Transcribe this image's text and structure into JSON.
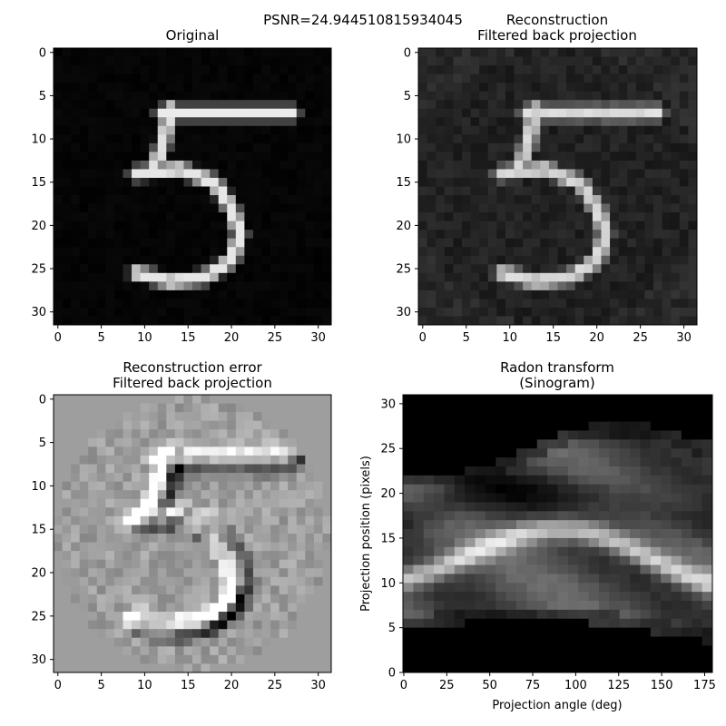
{
  "suptitle": "PSNR=24.944510815934045",
  "chart_data": [
    {
      "type": "heatmap",
      "title": "Original",
      "colormap": "gray",
      "xlim": [
        -0.5,
        31.5
      ],
      "ylim": [
        31.5,
        -0.5
      ],
      "xticks": [
        "0",
        "5",
        "10",
        "15",
        "20",
        "25",
        "30"
      ],
      "yticks": [
        "0",
        "5",
        "10",
        "15",
        "20",
        "25",
        "30"
      ],
      "xlabel": "",
      "ylabel": "",
      "background_level": 0.02,
      "strokes": [
        {
          "label": "top bar",
          "points": [
            [
              12,
              7
            ],
            [
              27,
              7
            ]
          ],
          "level": 0.92
        },
        {
          "label": "left stem",
          "points": [
            [
              13,
              6.5
            ],
            [
              12,
              11
            ],
            [
              11,
              13.5
            ]
          ],
          "level": 0.88
        },
        {
          "label": "bowl",
          "points": [
            [
              9,
              14
            ],
            [
              14,
              13.5
            ],
            [
              18,
              15
            ],
            [
              20,
              18
            ],
            [
              21,
              21
            ],
            [
              20,
              24
            ],
            [
              17,
              26
            ],
            [
              13,
              26.5
            ],
            [
              9,
              25.5
            ]
          ],
          "level": 0.9
        }
      ]
    },
    {
      "type": "heatmap",
      "title": "Reconstruction\nFiltered back projection",
      "colormap": "gray",
      "xlim": [
        -0.5,
        31.5
      ],
      "ylim": [
        31.5,
        -0.5
      ],
      "xticks": [
        "0",
        "5",
        "10",
        "15",
        "20",
        "25",
        "30"
      ],
      "yticks": [
        "0",
        "5",
        "10",
        "15",
        "20",
        "25",
        "30"
      ],
      "xlabel": "",
      "ylabel": "",
      "background_level": 0.13
    },
    {
      "type": "heatmap",
      "title": "Reconstruction error\nFiltered back projection",
      "colormap": "gray",
      "xlim": [
        -0.5,
        31.5
      ],
      "ylim": [
        31.5,
        -0.5
      ],
      "xticks": [
        "0",
        "5",
        "10",
        "15",
        "20",
        "25",
        "30"
      ],
      "yticks": [
        "0",
        "5",
        "10",
        "15",
        "20",
        "25",
        "30"
      ],
      "xlabel": "",
      "ylabel": "",
      "background_level": 0.62
    },
    {
      "type": "heatmap",
      "title": "Radon transform\n(Sinogram)",
      "colormap": "gray",
      "xlim": [
        -0.5,
        179.5
      ],
      "ylim": [
        0,
        31
      ],
      "xticks": [
        "0",
        "25",
        "50",
        "75",
        "100",
        "125",
        "150",
        "175"
      ],
      "yticks": [
        "0",
        "5",
        "10",
        "15",
        "20",
        "25",
        "30"
      ],
      "xlabel": "Projection angle (deg)",
      "ylabel": "Projection position (pixels)"
    }
  ]
}
